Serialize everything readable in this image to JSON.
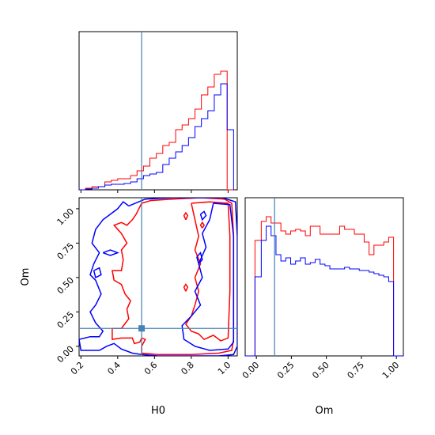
{
  "chart_data": {
    "type": "corner",
    "colors": {
      "series_a": "#ff0000",
      "series_b": "#0000ff",
      "truth": "#4682b4"
    },
    "truth": {
      "H0": 0.53,
      "Om": 0.13
    },
    "panels": [
      {
        "id": "hist-H0",
        "type": "histogram",
        "xlim": [
          0.19,
          1.05
        ],
        "ylim": [
          0,
          1.0
        ],
        "bin_edges": [
          0.19,
          0.225,
          0.26,
          0.295,
          0.33,
          0.365,
          0.4,
          0.435,
          0.47,
          0.505,
          0.54,
          0.575,
          0.61,
          0.645,
          0.68,
          0.715,
          0.75,
          0.785,
          0.82,
          0.855,
          0.89,
          0.925,
          0.96,
          0.995,
          1.03
        ],
        "series": [
          {
            "color": "series_a",
            "values": [
              0.0,
              0.01,
              0.02,
              0.02,
              0.05,
              0.06,
              0.07,
              0.07,
              0.09,
              0.12,
              0.15,
              0.2,
              0.23,
              0.28,
              0.3,
              0.38,
              0.41,
              0.45,
              0.51,
              0.6,
              0.65,
              0.73,
              0.75,
              0.0
            ]
          },
          {
            "color": "series_b",
            "values": [
              0.0,
              0.005,
              0.01,
              0.02,
              0.03,
              0.035,
              0.035,
              0.04,
              0.05,
              0.07,
              0.09,
              0.1,
              0.11,
              0.16,
              0.2,
              0.24,
              0.28,
              0.33,
              0.4,
              0.45,
              0.5,
              0.6,
              0.67,
              0.38
            ]
          }
        ],
        "xticks": [],
        "yticks": []
      },
      {
        "id": "contour-H0-Om",
        "type": "contour",
        "xlim": [
          0.19,
          1.05
        ],
        "ylim": [
          -0.07,
          1.08
        ],
        "xlabel": "H0",
        "ylabel": "Om",
        "xticks": [
          0.2,
          0.4,
          0.6,
          0.8,
          1.0
        ],
        "yticks": [
          0.0,
          0.25,
          0.5,
          0.75,
          1.0
        ],
        "xtick_labels": [
          "0.2",
          "0.4",
          "0.6",
          "0.8",
          "1.0"
        ],
        "ytick_labels": [
          "0.00",
          "0.25",
          "0.50",
          "0.75",
          "1.00"
        ],
        "contours": [
          {
            "color": "series_a",
            "name": "outer-left",
            "points": [
              [
                0.53,
                1.04
              ],
              [
                0.58,
                1.06
              ],
              [
                0.7,
                1.07
              ],
              [
                0.85,
                1.08
              ],
              [
                0.98,
                1.07
              ],
              [
                1.02,
                1.04
              ],
              [
                1.03,
                0.8
              ],
              [
                1.03,
                0.4
              ],
              [
                1.03,
                0.05
              ],
              [
                1.02,
                -0.03
              ],
              [
                0.95,
                -0.05
              ],
              [
                0.8,
                -0.06
              ],
              [
                0.62,
                -0.06
              ],
              [
                0.53,
                -0.05
              ],
              [
                0.53,
                0.0
              ],
              [
                0.55,
                0.05
              ],
              [
                0.53,
                0.06
              ],
              [
                0.52,
                0.03
              ],
              [
                0.49,
                0.02
              ],
              [
                0.48,
                0.06
              ],
              [
                0.42,
                0.06
              ],
              [
                0.37,
                0.05
              ],
              [
                0.37,
                0.13
              ],
              [
                0.42,
                0.13
              ],
              [
                0.46,
                0.2
              ],
              [
                0.45,
                0.27
              ],
              [
                0.47,
                0.33
              ],
              [
                0.44,
                0.38
              ],
              [
                0.42,
                0.45
              ],
              [
                0.38,
                0.48
              ],
              [
                0.37,
                0.55
              ],
              [
                0.42,
                0.55
              ],
              [
                0.43,
                0.63
              ],
              [
                0.42,
                0.7
              ],
              [
                0.45,
                0.75
              ],
              [
                0.42,
                0.82
              ],
              [
                0.38,
                0.88
              ],
              [
                0.42,
                0.9
              ],
              [
                0.45,
                0.88
              ],
              [
                0.48,
                0.92
              ],
              [
                0.5,
                0.96
              ],
              [
                0.53,
                1.04
              ]
            ]
          },
          {
            "color": "series_a",
            "name": "inner-right",
            "points": [
              [
                0.8,
                1.04
              ],
              [
                0.9,
                1.05
              ],
              [
                1.0,
                1.04
              ],
              [
                1.01,
                0.8
              ],
              [
                1.01,
                0.4
              ],
              [
                1.0,
                0.06
              ],
              [
                0.96,
                0.04
              ],
              [
                0.92,
                0.08
              ],
              [
                0.87,
                0.05
              ],
              [
                0.84,
                0.09
              ],
              [
                0.8,
                0.11
              ],
              [
                0.77,
                0.16
              ],
              [
                0.8,
                0.22
              ],
              [
                0.82,
                0.3
              ],
              [
                0.84,
                0.4
              ],
              [
                0.82,
                0.5
              ],
              [
                0.85,
                0.6
              ],
              [
                0.82,
                0.7
              ],
              [
                0.84,
                0.8
              ],
              [
                0.82,
                0.92
              ],
              [
                0.8,
                1.04
              ]
            ]
          },
          {
            "color": "series_a",
            "name": "island-1",
            "points": [
              [
                0.77,
                0.92
              ],
              [
                0.78,
                0.95
              ],
              [
                0.77,
                0.97
              ],
              [
                0.76,
                0.95
              ],
              [
                0.77,
                0.92
              ]
            ]
          },
          {
            "color": "series_a",
            "name": "island-2",
            "points": [
              [
                0.86,
                0.86
              ],
              [
                0.87,
                0.88
              ],
              [
                0.86,
                0.9
              ],
              [
                0.85,
                0.88
              ],
              [
                0.86,
                0.86
              ]
            ]
          },
          {
            "color": "series_a",
            "name": "island-3",
            "points": [
              [
                0.77,
                0.4
              ],
              [
                0.78,
                0.43
              ],
              [
                0.77,
                0.45
              ],
              [
                0.76,
                0.43
              ],
              [
                0.77,
                0.4
              ]
            ]
          },
          {
            "color": "series_b",
            "name": "outer",
            "points": [
              [
                0.46,
                1.02
              ],
              [
                0.55,
                1.07
              ],
              [
                0.7,
                1.08
              ],
              [
                0.85,
                1.08
              ],
              [
                0.97,
                1.08
              ],
              [
                1.04,
                1.05
              ],
              [
                1.05,
                0.8
              ],
              [
                1.05,
                0.4
              ],
              [
                1.05,
                0.0
              ],
              [
                1.03,
                -0.06
              ],
              [
                0.95,
                -0.07
              ],
              [
                0.8,
                -0.07
              ],
              [
                0.62,
                -0.07
              ],
              [
                0.53,
                -0.06
              ],
              [
                0.48,
                -0.05
              ],
              [
                0.42,
                -0.02
              ],
              [
                0.38,
                0.02
              ],
              [
                0.34,
                0.0
              ],
              [
                0.3,
                -0.03
              ],
              [
                0.2,
                -0.03
              ],
              [
                0.19,
                0.05
              ],
              [
                0.25,
                0.07
              ],
              [
                0.3,
                0.07
              ],
              [
                0.32,
                0.11
              ],
              [
                0.28,
                0.17
              ],
              [
                0.25,
                0.25
              ],
              [
                0.28,
                0.3
              ],
              [
                0.31,
                0.38
              ],
              [
                0.28,
                0.48
              ],
              [
                0.25,
                0.52
              ],
              [
                0.27,
                0.6
              ],
              [
                0.3,
                0.68
              ],
              [
                0.26,
                0.75
              ],
              [
                0.28,
                0.85
              ],
              [
                0.32,
                0.92
              ],
              [
                0.35,
                0.95
              ],
              [
                0.4,
                1.0
              ],
              [
                0.43,
                1.05
              ],
              [
                0.46,
                1.02
              ]
            ]
          },
          {
            "color": "series_b",
            "name": "inner-right",
            "points": [
              [
                0.92,
                1.04
              ],
              [
                1.01,
                1.03
              ],
              [
                1.03,
                0.8
              ],
              [
                1.03,
                0.4
              ],
              [
                1.03,
                0.03
              ],
              [
                1.0,
                -0.02
              ],
              [
                0.9,
                -0.03
              ],
              [
                0.82,
                0.0
              ],
              [
                0.76,
                0.05
              ],
              [
                0.75,
                0.15
              ],
              [
                0.8,
                0.22
              ],
              [
                0.85,
                0.3
              ],
              [
                0.82,
                0.4
              ],
              [
                0.86,
                0.5
              ],
              [
                0.84,
                0.6
              ],
              [
                0.88,
                0.72
              ],
              [
                0.86,
                0.82
              ],
              [
                0.9,
                0.92
              ],
              [
                0.92,
                1.04
              ]
            ]
          },
          {
            "color": "series_b",
            "name": "island-1",
            "points": [
              [
                0.32,
                0.68
              ],
              [
                0.36,
                0.7
              ],
              [
                0.4,
                0.68
              ],
              [
                0.36,
                0.66
              ],
              [
                0.32,
                0.68
              ]
            ]
          },
          {
            "color": "series_b",
            "name": "island-2",
            "points": [
              [
                0.27,
                0.55
              ],
              [
                0.3,
                0.57
              ],
              [
                0.31,
                0.52
              ],
              [
                0.28,
                0.5
              ],
              [
                0.27,
                0.55
              ]
            ]
          },
          {
            "color": "series_b",
            "name": "island-3",
            "points": [
              [
                0.83,
                0.65
              ],
              [
                0.85,
                0.68
              ],
              [
                0.86,
                0.63
              ],
              [
                0.84,
                0.6
              ],
              [
                0.83,
                0.65
              ]
            ]
          },
          {
            "color": "series_b",
            "name": "island-4",
            "points": [
              [
                0.85,
                0.96
              ],
              [
                0.87,
                0.98
              ],
              [
                0.88,
                0.95
              ],
              [
                0.86,
                0.92
              ],
              [
                0.85,
                0.96
              ]
            ]
          }
        ]
      },
      {
        "id": "hist-Om",
        "type": "histogram",
        "xlim": [
          -0.08,
          1.05
        ],
        "ylim": [
          0,
          1.0
        ],
        "xlabel": "Om",
        "xticks": [
          0.0,
          0.25,
          0.5,
          0.75,
          1.0
        ],
        "xtick_labels": [
          "0.00",
          "0.25",
          "0.50",
          "0.75",
          "1.00"
        ],
        "bin_edges": [
          -0.08,
          -0.01,
          0.035,
          0.07,
          0.105,
          0.14,
          0.175,
          0.21,
          0.245,
          0.28,
          0.315,
          0.35,
          0.385,
          0.42,
          0.455,
          0.49,
          0.525,
          0.56,
          0.595,
          0.63,
          0.665,
          0.7,
          0.735,
          0.77,
          0.805,
          0.84,
          0.875,
          0.91,
          0.945,
          0.98,
          1.02,
          1.05
        ],
        "series": [
          {
            "color": "series_a",
            "values": [
              0.0,
              0.73,
              0.85,
              0.88,
              0.84,
              0.84,
              0.79,
              0.77,
              0.79,
              0.8,
              0.79,
              0.76,
              0.82,
              0.82,
              0.77,
              0.77,
              0.77,
              0.77,
              0.82,
              0.8,
              0.8,
              0.77,
              0.77,
              0.72,
              0.64,
              0.7,
              0.7,
              0.72,
              0.75,
              0.0,
              0.0
            ]
          },
          {
            "color": "series_b",
            "values": [
              0.0,
              0.5,
              0.73,
              0.82,
              0.76,
              0.64,
              0.6,
              0.62,
              0.58,
              0.6,
              0.62,
              0.58,
              0.59,
              0.61,
              0.58,
              0.57,
              0.55,
              0.55,
              0.55,
              0.56,
              0.55,
              0.55,
              0.54,
              0.54,
              0.53,
              0.52,
              0.51,
              0.5,
              0.47,
              0.0,
              0.0
            ]
          }
        ],
        "yticks": []
      }
    ]
  }
}
